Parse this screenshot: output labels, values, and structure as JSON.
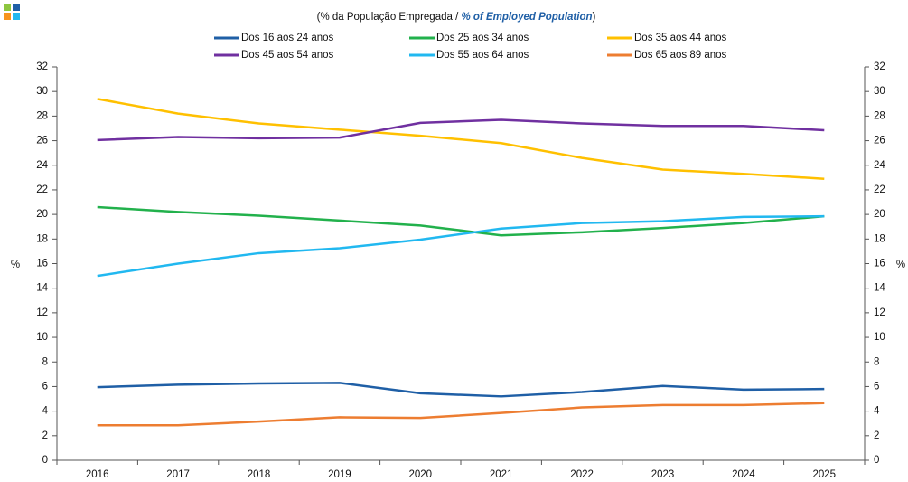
{
  "chart_data": {
    "type": "line",
    "subtitle": [
      "(% da População  Empregada / ",
      "% of Employed Population",
      ")"
    ],
    "categories": [
      "2016",
      "2017",
      "2018",
      "2019",
      "2020",
      "2021",
      "2022",
      "2023",
      "2024",
      "2025"
    ],
    "series": [
      {
        "name": "Dos 16 aos 24 anos",
        "color": "#1f5fa6",
        "values": [
          5.95,
          6.15,
          6.25,
          6.3,
          5.45,
          5.2,
          5.55,
          6.05,
          5.75,
          5.8
        ]
      },
      {
        "name": "Dos 25 aos 34 anos",
        "color": "#22b14c",
        "values": [
          20.6,
          20.2,
          19.9,
          19.5,
          19.1,
          18.3,
          18.55,
          18.9,
          19.3,
          19.85
        ]
      },
      {
        "name": "Dos 35 aos 44 anos",
        "color": "#ffc000",
        "values": [
          29.4,
          28.2,
          27.4,
          26.9,
          26.4,
          25.8,
          24.6,
          23.65,
          23.3,
          22.9
        ]
      },
      {
        "name": "Dos 45 aos 54 anos",
        "color": "#7030a0",
        "values": [
          26.05,
          26.3,
          26.2,
          26.25,
          27.45,
          27.7,
          27.4,
          27.2,
          27.2,
          26.85
        ]
      },
      {
        "name": "Dos 55 aos 64 anos",
        "color": "#21b8f0",
        "values": [
          15.0,
          16.0,
          16.85,
          17.25,
          17.95,
          18.85,
          19.3,
          19.45,
          19.8,
          19.85
        ]
      },
      {
        "name": "Dos 65 aos 89 anos",
        "color": "#ed7d31",
        "values": [
          2.85,
          2.85,
          3.15,
          3.5,
          3.45,
          3.85,
          4.3,
          4.5,
          4.5,
          4.65
        ]
      }
    ],
    "ylabel": "%",
    "y2label": "%",
    "ylim": [
      0,
      32
    ],
    "yticks": [
      0,
      2,
      4,
      6,
      8,
      10,
      12,
      14,
      16,
      18,
      20,
      22,
      24,
      26,
      28,
      30,
      32
    ],
    "y2lim": [
      0,
      32
    ],
    "y2ticks": [
      0,
      2,
      4,
      6,
      8,
      10,
      12,
      14,
      16,
      18,
      20,
      22,
      24,
      26,
      28,
      30,
      32
    ],
    "grid": false
  }
}
